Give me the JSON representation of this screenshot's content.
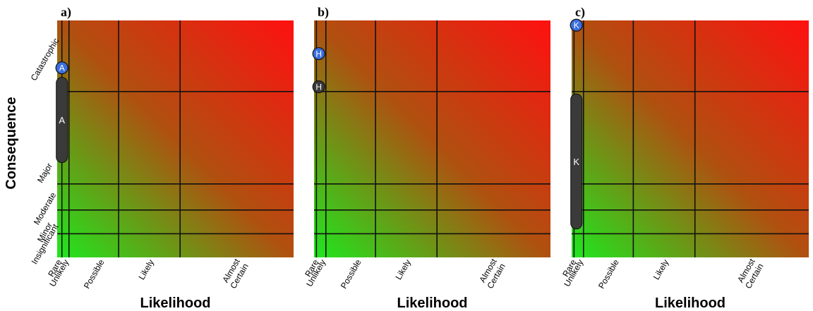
{
  "chart_data": [
    {
      "type": "heatmap",
      "panel": "a)",
      "xlabel": "Likelihood",
      "ylabel": "Consequence",
      "x_ticks": [
        "Rare",
        "Unlikely",
        "Possible",
        "Likely",
        "Almost Certain"
      ],
      "y_ticks": [
        "Insignificant",
        "Minor",
        "Moderate",
        "Major",
        "Catastrophic"
      ],
      "x_boundaries": [
        0.02,
        0.05,
        0.26,
        0.52
      ],
      "y_boundaries": [
        0.1,
        0.2,
        0.31,
        0.7
      ],
      "markers": [
        {
          "label": "A",
          "shape": "circle",
          "x": 0.02,
          "y": 0.8
        },
        {
          "label": "A",
          "shape": "bar",
          "x": 0.02,
          "y_min": 0.4,
          "y_max": 0.76
        }
      ]
    },
    {
      "type": "heatmap",
      "panel": "b)",
      "xlabel": "Likelihood",
      "x_ticks": [
        "Rare",
        "Unlikely",
        "Possible",
        "Likely",
        "Almost Certain"
      ],
      "x_boundaries": [
        0.01,
        0.05,
        0.26,
        0.52
      ],
      "y_boundaries": [
        0.1,
        0.2,
        0.31,
        0.7
      ],
      "markers": [
        {
          "label": "H",
          "shape": "circle",
          "color": "#3b6fe0",
          "x": 0.02,
          "y": 0.86
        },
        {
          "label": "H",
          "shape": "circle",
          "color": "#3a3a3a",
          "x": 0.02,
          "y": 0.72
        }
      ]
    },
    {
      "type": "heatmap",
      "panel": "c)",
      "xlabel": "Likelihood",
      "x_ticks": [
        "Rare",
        "Unlikely",
        "Possible",
        "Likely",
        "Almost Certain"
      ],
      "x_boundaries": [
        0.01,
        0.05,
        0.26,
        0.52
      ],
      "y_boundaries": [
        0.1,
        0.2,
        0.31,
        0.7
      ],
      "markers": [
        {
          "label": "K",
          "shape": "circle",
          "color": "#3b6fe0",
          "x": 0.02,
          "y": 0.98
        },
        {
          "label": "K",
          "shape": "bar",
          "x": 0.02,
          "y_min": 0.12,
          "y_max": 0.69
        }
      ]
    }
  ],
  "colors": {
    "low": "#1ee81e",
    "high": "#ff1010",
    "mid": "#b05010",
    "marker_blue": "#3b6fe0",
    "marker_dark": "#3a3a3a"
  }
}
